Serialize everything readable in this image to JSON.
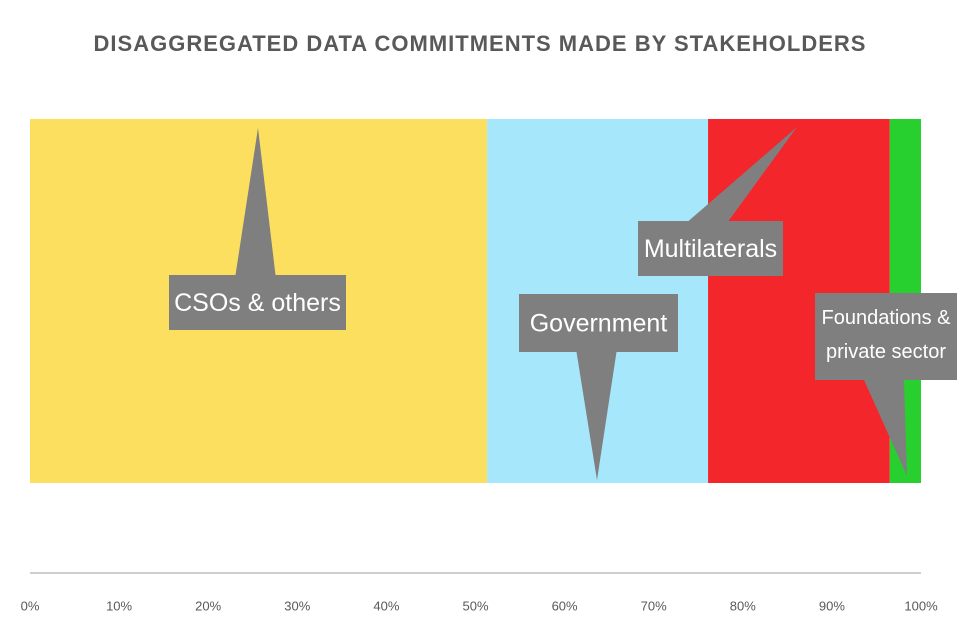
{
  "chart_data": {
    "type": "stacked-bar-100",
    "title": "DISAGGREGATED DATA  COMMITMENTS MADE BY STAKEHOLDERS",
    "orientation": "horizontal",
    "series": [
      {
        "name": "CSOs & others",
        "color": "#fddf5f",
        "values": [
          51.3
        ]
      },
      {
        "name": "Government",
        "color": "#a6e7fb",
        "values": [
          24.8
        ]
      },
      {
        "name": "Multilaterals",
        "color": "#f2262b",
        "values": [
          20.4
        ]
      },
      {
        "name": "Foundations & private sector",
        "color": "#28d02f",
        "values": [
          3.5
        ]
      }
    ],
    "xlim": [
      0,
      100
    ],
    "xticks": [
      {
        "value": 0,
        "label": "0%"
      },
      {
        "value": 10,
        "label": "10%"
      },
      {
        "value": 20,
        "label": "20%"
      },
      {
        "value": 30,
        "label": "30%"
      },
      {
        "value": 40,
        "label": "40%"
      },
      {
        "value": 50,
        "label": "50%"
      },
      {
        "value": 60,
        "label": "60%"
      },
      {
        "value": 70,
        "label": "70%"
      },
      {
        "value": 80,
        "label": "80%"
      },
      {
        "value": 90,
        "label": "90%"
      },
      {
        "value": 100,
        "label": "100%"
      }
    ]
  }
}
